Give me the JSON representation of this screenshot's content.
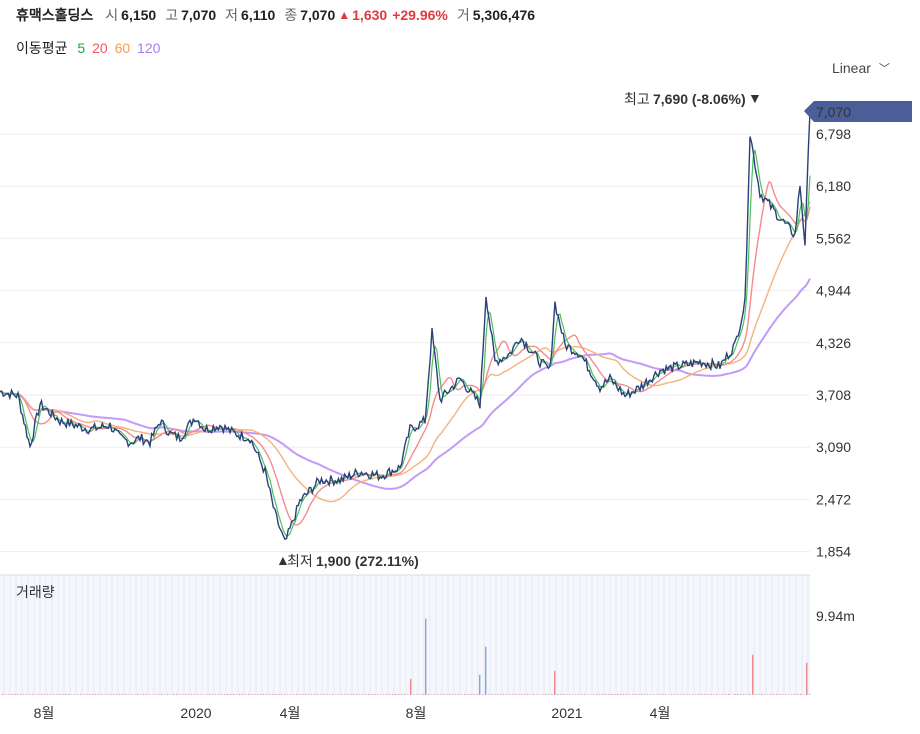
{
  "header": {
    "name": "휴맥스홀딩스",
    "open_label": "시",
    "open": "6,150",
    "high_label": "고",
    "high": "7,070",
    "low_label": "저",
    "low": "6,110",
    "close_label": "종",
    "close": "7,070",
    "change_arrow": "▲",
    "change": "1,630",
    "change_pct": "+29.96%",
    "volume_label": "거",
    "volume": "5,306,476"
  },
  "ma_legend": {
    "label": "이동평균",
    "items": [
      {
        "text": "5",
        "color": "#22a83a"
      },
      {
        "text": "20",
        "color": "#f0585e"
      },
      {
        "text": "60",
        "color": "#f5a04a"
      },
      {
        "text": "120",
        "color": "#a77cf0"
      }
    ]
  },
  "scale_selector": {
    "label": "Linear"
  },
  "volume_panel": {
    "label": "거래량",
    "max_label": "9.94m"
  },
  "annotations": {
    "high": {
      "prefix": "최고",
      "value": "7,690 (-8.06%)",
      "arrow": "▼"
    },
    "low": {
      "arrow": "▲",
      "prefix": "최저",
      "value": "1,900 (272.11%)"
    },
    "last_price": "7,070"
  },
  "colors": {
    "price_line": "#2b3f7a",
    "accent": "#4a5f9a",
    "volume_bar": "#f08a8e",
    "volume_blue": "#8aa4e0"
  },
  "chart_data": [
    {
      "type": "line",
      "series_name": "price",
      "y_ticks": [
        "6,798",
        "6,180",
        "5,562",
        "4,944",
        "4,326",
        "3,708",
        "3,090",
        "2,472",
        "1,854"
      ],
      "x_ticks": [
        "8월",
        "2020",
        "4월",
        "8월",
        "2021",
        "4월"
      ],
      "ylim": [
        1854,
        7070
      ],
      "keypoints": [
        [
          0,
          3750
        ],
        [
          18,
          3700
        ],
        [
          30,
          3100
        ],
        [
          40,
          3600
        ],
        [
          60,
          3400
        ],
        [
          90,
          3300
        ],
        [
          110,
          3350
        ],
        [
          120,
          3200
        ],
        [
          130,
          3150
        ],
        [
          140,
          3200
        ],
        [
          150,
          3150
        ],
        [
          160,
          3400
        ],
        [
          170,
          3250
        ],
        [
          180,
          3200
        ],
        [
          195,
          3450
        ],
        [
          205,
          3300
        ],
        [
          220,
          3350
        ],
        [
          235,
          3250
        ],
        [
          250,
          3200
        ],
        [
          265,
          2800
        ],
        [
          275,
          2300
        ],
        [
          285,
          1950
        ],
        [
          300,
          2450
        ],
        [
          320,
          2700
        ],
        [
          340,
          2700
        ],
        [
          360,
          2800
        ],
        [
          380,
          2750
        ],
        [
          400,
          2850
        ],
        [
          410,
          3300
        ],
        [
          425,
          3400
        ],
        [
          432,
          4450
        ],
        [
          440,
          3650
        ],
        [
          460,
          3900
        ],
        [
          480,
          3600
        ],
        [
          486,
          4900
        ],
        [
          495,
          4100
        ],
        [
          510,
          4200
        ],
        [
          520,
          4400
        ],
        [
          540,
          4100
        ],
        [
          550,
          4000
        ],
        [
          555,
          4800
        ],
        [
          565,
          4300
        ],
        [
          580,
          4200
        ],
        [
          600,
          3800
        ],
        [
          610,
          3900
        ],
        [
          625,
          3700
        ],
        [
          640,
          3800
        ],
        [
          660,
          4000
        ],
        [
          680,
          4050
        ],
        [
          700,
          4100
        ],
        [
          720,
          4050
        ],
        [
          735,
          4300
        ],
        [
          745,
          4800
        ],
        [
          750,
          6800
        ],
        [
          760,
          6100
        ],
        [
          780,
          5800
        ],
        [
          795,
          5600
        ],
        [
          800,
          6200
        ],
        [
          805,
          5500
        ],
        [
          810,
          7070
        ]
      ]
    },
    {
      "type": "bar",
      "series_name": "volume",
      "ylim": [
        0,
        9940000
      ],
      "spikes": [
        [
          410,
          2
        ],
        [
          425,
          9.5
        ],
        [
          480,
          2.5
        ],
        [
          486,
          6
        ],
        [
          555,
          3
        ],
        [
          752,
          5
        ],
        [
          805,
          4
        ]
      ]
    }
  ]
}
